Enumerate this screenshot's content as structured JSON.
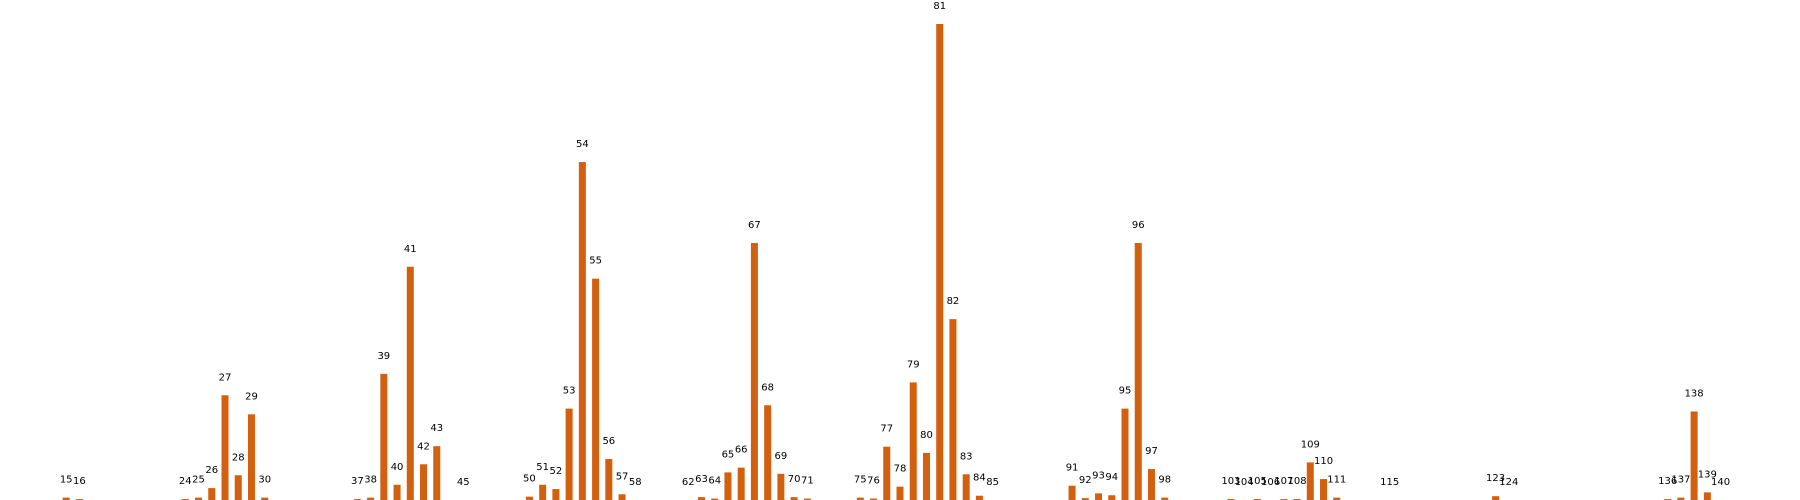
{
  "chart_data": {
    "type": "bar",
    "title": "",
    "xlabel": "",
    "ylabel": "",
    "x_range": [
      10,
      146
    ],
    "ylim": [
      0,
      100
    ],
    "grid": false,
    "axes_visible": false,
    "bar_color": "#d2600e",
    "x": [
      15,
      16,
      24,
      25,
      26,
      27,
      28,
      29,
      30,
      37,
      38,
      39,
      40,
      41,
      42,
      43,
      45,
      50,
      51,
      52,
      53,
      54,
      55,
      56,
      57,
      58,
      62,
      63,
      64,
      65,
      66,
      67,
      68,
      69,
      70,
      71,
      75,
      76,
      77,
      78,
      79,
      80,
      81,
      82,
      83,
      84,
      85,
      91,
      92,
      93,
      94,
      95,
      96,
      97,
      98,
      103,
      104,
      105,
      106,
      107,
      108,
      109,
      110,
      111,
      115,
      123,
      124,
      136,
      137,
      138,
      139,
      140
    ],
    "values": [
      0.5,
      0.2,
      0.2,
      0.5,
      2.5,
      22,
      5.2,
      18,
      0.5,
      0.2,
      0.5,
      26.5,
      3.2,
      49,
      7.5,
      11.3,
      0,
      0.7,
      3.2,
      2.3,
      19.2,
      71,
      46.5,
      8.6,
      1.2,
      0,
      0,
      0.6,
      0.3,
      5.8,
      6.8,
      54,
      19.9,
      5.5,
      0.6,
      0.3,
      0.5,
      0.3,
      11.2,
      2.8,
      24.7,
      9.9,
      100,
      38,
      5.4,
      0.9,
      0,
      3,
      0.4,
      1.4,
      1,
      19.2,
      54,
      6.5,
      0.5,
      0.2,
      0,
      0.2,
      0,
      0.2,
      0.2,
      7.9,
      4.4,
      0.5,
      0,
      0.8,
      0,
      0.2,
      0.5,
      18.6,
      1.6,
      0
    ],
    "labels": [
      "15",
      "16",
      "24",
      "25",
      "26",
      "27",
      "28",
      "29",
      "30",
      "37",
      "38",
      "39",
      "40",
      "41",
      "42",
      "43",
      "45",
      "50",
      "51",
      "52",
      "53",
      "54",
      "55",
      "56",
      "57",
      "58",
      "62",
      "63",
      "64",
      "65",
      "66",
      "67",
      "68",
      "69",
      "70",
      "71",
      "75",
      "76",
      "77",
      "78",
      "79",
      "80",
      "81",
      "82",
      "83",
      "84",
      "85",
      "91",
      "92",
      "93",
      "94",
      "95",
      "96",
      "97",
      "98",
      "103",
      "104",
      "105",
      "106",
      "107",
      "108",
      "109",
      "110",
      "111",
      "115",
      "123",
      "124",
      "136",
      "137",
      "138",
      "139",
      "140"
    ]
  }
}
